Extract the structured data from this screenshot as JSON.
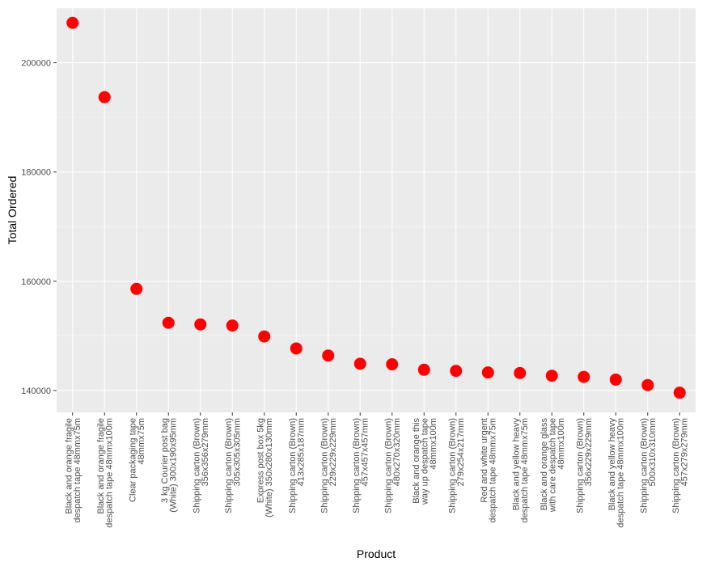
{
  "chart_data": {
    "type": "scatter",
    "xlabel": "Product",
    "ylabel": "Total Ordered",
    "ylim": [
      136000,
      210000
    ],
    "yticks": [
      140000,
      160000,
      180000,
      200000
    ],
    "ytick_labels": [
      "140000",
      "160000",
      "180000",
      "200000"
    ],
    "grid": true,
    "legend": "none",
    "panel_color": "#ebebeb",
    "point_color": "#ff0000",
    "categories": [
      [
        "Black and orange fragile",
        "despatch tape 48mmx75m"
      ],
      [
        "Black and orange fragile",
        "despatch tape 48mmx100m"
      ],
      [
        "Clear packaging tape",
        "48mmx75m"
      ],
      [
        "3 kg Courier post bag",
        "(White) 300x190x95mm"
      ],
      [
        "Shipping carton (Brown)",
        "356x356x279mm"
      ],
      [
        "Shipping carton (Brown)",
        "305x305x305mm"
      ],
      [
        "Express post box 5kg",
        "(White) 350x280x130mm"
      ],
      [
        "Shipping carton (Brown)",
        "413x285x187mm"
      ],
      [
        "Shipping carton (Brown)",
        "229x229x229mm"
      ],
      [
        "Shipping carton (Brown)",
        "457x457x457mm"
      ],
      [
        "Shipping carton (Brown)",
        "480x270x320mm"
      ],
      [
        "Black and orange this",
        "way up despatch tape",
        "48mmx100m"
      ],
      [
        "Shipping carton (Brown)",
        "279x254x217mm"
      ],
      [
        "Red and white urgent",
        "despatch tape 48mmx75m"
      ],
      [
        "Black and yellow heavy",
        "despatch tape 48mmx75m"
      ],
      [
        "Black and orange glass",
        "with care despatch tape",
        "48mmx100m"
      ],
      [
        "Shipping carton (Brown)",
        "356x229x229mm"
      ],
      [
        "Black and yellow heavy",
        "despatch tape 48mmx100m"
      ],
      [
        "Shipping carton (Brown)",
        "500x310x310mm"
      ],
      [
        "Shipping carton (Brown)",
        "457x279x279mm"
      ]
    ],
    "values": [
      207300,
      193700,
      158600,
      152400,
      152100,
      151900,
      149900,
      147700,
      146400,
      144900,
      144800,
      143800,
      143600,
      143300,
      143200,
      142700,
      142500,
      142000,
      141000,
      139600
    ]
  }
}
